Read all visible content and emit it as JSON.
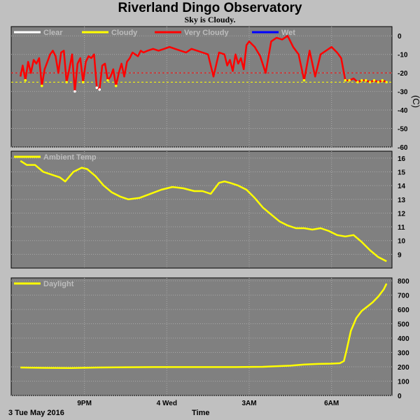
{
  "title": "Riverland Dingo Observatory",
  "subtitle": "Sky is Cloudy.",
  "footer": {
    "date": "3 Tue May 2016",
    "xlabel": "Time"
  },
  "colors": {
    "clear": "#ffffff",
    "cloudy": "#ffff00",
    "very_cloudy": "#ff0000",
    "wet": "#0000ff",
    "panel": "#808080",
    "grid": "#a8a8a8"
  },
  "chart_data": [
    {
      "type": "line",
      "panel": "sky",
      "legend": [
        "Clear",
        "Cloudy",
        "Very Cloudy",
        "Wet"
      ],
      "legend_colors": [
        "#ffffff",
        "#ffff00",
        "#ff0000",
        "#0000ff"
      ],
      "ylabel": "(C)",
      "yticks": [
        0,
        -10,
        -20,
        -30,
        -40,
        -50,
        -60
      ],
      "ylim": [
        -60,
        5
      ],
      "thresholds": [
        -20,
        -25
      ],
      "xticks": [
        "9PM",
        "4 Wed",
        "3AM",
        "6AM"
      ],
      "x_hours": [
        18.67,
        18.75,
        18.85,
        18.95,
        19.05,
        19.15,
        19.25,
        19.35,
        19.45,
        19.55,
        19.65,
        19.75,
        19.85,
        19.95,
        20.05,
        20.15,
        20.25,
        20.35,
        20.45,
        20.55,
        20.65,
        20.75,
        20.85,
        20.95,
        21.05,
        21.15,
        21.25,
        21.35,
        21.45,
        21.55,
        21.65,
        21.75,
        21.85,
        21.95,
        22.05,
        22.15,
        22.25,
        22.35,
        22.45,
        22.55,
        22.65,
        22.75,
        22.85,
        22.95,
        23.05,
        23.15,
        23.3,
        23.5,
        23.7,
        23.9,
        24.1,
        24.3,
        24.5,
        24.7,
        24.9,
        25.1,
        25.3,
        25.5,
        25.7,
        25.9,
        26.1,
        26.2,
        26.3,
        26.4,
        26.5,
        26.6,
        26.7,
        26.8,
        26.9,
        27.0,
        27.2,
        27.4,
        27.6,
        27.8,
        28.0,
        28.2,
        28.4,
        28.6,
        28.8,
        29.0,
        29.2,
        29.4,
        29.6,
        29.8,
        30.0,
        30.2,
        30.35,
        30.5,
        30.65,
        30.8,
        30.95,
        31.1,
        31.25,
        31.4,
        31.55,
        31.7,
        31.85,
        32.0
      ],
      "values": [
        -22,
        -16,
        -24,
        -14,
        -20,
        -13,
        -15,
        -12,
        -27,
        -18,
        -14,
        -10,
        -8,
        -11,
        -20,
        -9,
        -8,
        -25,
        -18,
        -10,
        -30,
        -15,
        -12,
        -25,
        -14,
        -11,
        -12,
        -10,
        -28,
        -29,
        -16,
        -15,
        -24,
        -22,
        -18,
        -27,
        -20,
        -15,
        -22,
        -14,
        -12,
        -9,
        -10,
        -11,
        -8,
        -9,
        -8,
        -7,
        -8,
        -7,
        -6,
        -7,
        -8,
        -9,
        -7,
        -8,
        -9,
        -10,
        -22,
        -9,
        -10,
        -16,
        -13,
        -19,
        -10,
        -15,
        -12,
        -18,
        -5,
        -3,
        -6,
        -11,
        -20,
        -3,
        -1,
        -2,
        0,
        -6,
        -10,
        -24,
        -8,
        -22,
        -10,
        -8,
        -6,
        -9,
        -12,
        -24,
        -24,
        -23,
        -25,
        -24,
        -24,
        -25,
        -24,
        -25,
        -24,
        -25
      ]
    },
    {
      "type": "line",
      "panel": "ambient",
      "legend": [
        "Ambient Temp"
      ],
      "legend_colors": [
        "#ffff00"
      ],
      "yticks": [
        16,
        15,
        14,
        13,
        12,
        11,
        10,
        9
      ],
      "ylim": [
        8,
        16.5
      ],
      "xticks": [
        "9PM",
        "4 Wed",
        "3AM",
        "6AM"
      ],
      "x_hours": [
        18.67,
        18.9,
        19.2,
        19.5,
        19.8,
        20.1,
        20.3,
        20.6,
        20.9,
        21.1,
        21.4,
        21.7,
        22.0,
        22.3,
        22.6,
        23.0,
        23.4,
        23.8,
        24.2,
        24.6,
        25.0,
        25.3,
        25.6,
        25.9,
        26.1,
        26.3,
        26.6,
        26.9,
        27.2,
        27.5,
        27.8,
        28.1,
        28.4,
        28.7,
        29.0,
        29.3,
        29.6,
        29.9,
        30.2,
        30.5,
        30.8,
        31.1,
        31.4,
        31.7,
        32.0
      ],
      "values": [
        15.8,
        15.5,
        15.5,
        15.0,
        14.8,
        14.6,
        14.3,
        15.0,
        15.3,
        15.2,
        14.7,
        14.0,
        13.5,
        13.2,
        13.0,
        13.1,
        13.4,
        13.7,
        13.9,
        13.8,
        13.6,
        13.6,
        13.4,
        14.2,
        14.3,
        14.2,
        14.0,
        13.7,
        13.1,
        12.4,
        11.9,
        11.4,
        11.1,
        10.9,
        10.9,
        10.8,
        10.9,
        10.7,
        10.4,
        10.3,
        10.4,
        9.9,
        9.3,
        8.8,
        8.5
      ]
    },
    {
      "type": "line",
      "panel": "daylight",
      "legend": [
        "Daylight"
      ],
      "legend_colors": [
        "#ffff00"
      ],
      "yticks": [
        800,
        700,
        600,
        500,
        400,
        300,
        200,
        100,
        0
      ],
      "ylim": [
        0,
        820
      ],
      "xticks": [
        "9PM",
        "4 Wed",
        "3AM",
        "6AM"
      ],
      "x_hours": [
        18.67,
        19.5,
        20.5,
        21.5,
        22.5,
        23.5,
        24.5,
        25.5,
        26.5,
        27.5,
        28.5,
        29.0,
        29.5,
        30.0,
        30.3,
        30.45,
        30.55,
        30.7,
        30.9,
        31.1,
        31.3,
        31.5,
        31.7,
        31.9,
        32.0
      ],
      "values": [
        195,
        193,
        192,
        195,
        197,
        198,
        198,
        198,
        198,
        200,
        208,
        216,
        220,
        222,
        225,
        240,
        320,
        450,
        540,
        590,
        620,
        650,
        690,
        740,
        780
      ]
    }
  ]
}
